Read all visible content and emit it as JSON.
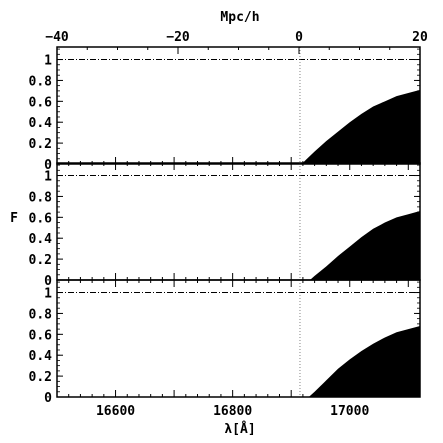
{
  "chart_data": {
    "type": "area",
    "ylabel": "F",
    "xlabel": "λ[Å]",
    "x_top_label": "Mpc/h",
    "x_bottom_ticks": [
      "16600",
      "16800",
      "17000"
    ],
    "x_bottom_tick_values": [
      16600,
      16800,
      17000
    ],
    "x_bottom_range": [
      16500,
      17120
    ],
    "x_top_ticks": [
      "−40",
      "−20",
      "0",
      "20"
    ],
    "x_top_tick_values": [
      -40,
      -20,
      0,
      20
    ],
    "x_top_range": [
      -40,
      20
    ],
    "y_ticks": [
      "0",
      "0.2",
      "0.4",
      "0.6",
      "0.8",
      "1"
    ],
    "y_tick_values": [
      0,
      0.2,
      0.4,
      0.6,
      0.8,
      1
    ],
    "ylim": [
      0,
      1.12
    ],
    "continuum_level": 1,
    "zero_marker_x": 16915,
    "panels": [
      {
        "x": [
          16500,
          16900,
          16918,
          16925,
          16940,
          16960,
          16980,
          17000,
          17020,
          17040,
          17060,
          17080,
          17100,
          17120
        ],
        "y": [
          0,
          0,
          0,
          0.04,
          0.12,
          0.22,
          0.31,
          0.4,
          0.48,
          0.55,
          0.6,
          0.65,
          0.68,
          0.71
        ]
      },
      {
        "x": [
          16500,
          16920,
          16932,
          16940,
          16960,
          16980,
          17000,
          17020,
          17040,
          17060,
          17080,
          17100,
          17120
        ],
        "y": [
          0,
          0,
          0,
          0.04,
          0.13,
          0.23,
          0.32,
          0.41,
          0.49,
          0.55,
          0.6,
          0.63,
          0.66
        ]
      },
      {
        "x": [
          16500,
          16920,
          16930,
          16940,
          16960,
          16980,
          17000,
          17020,
          17040,
          17060,
          17080,
          17100,
          17120
        ],
        "y": [
          0,
          0,
          0,
          0.05,
          0.16,
          0.27,
          0.36,
          0.44,
          0.51,
          0.57,
          0.62,
          0.65,
          0.68
        ]
      }
    ]
  }
}
